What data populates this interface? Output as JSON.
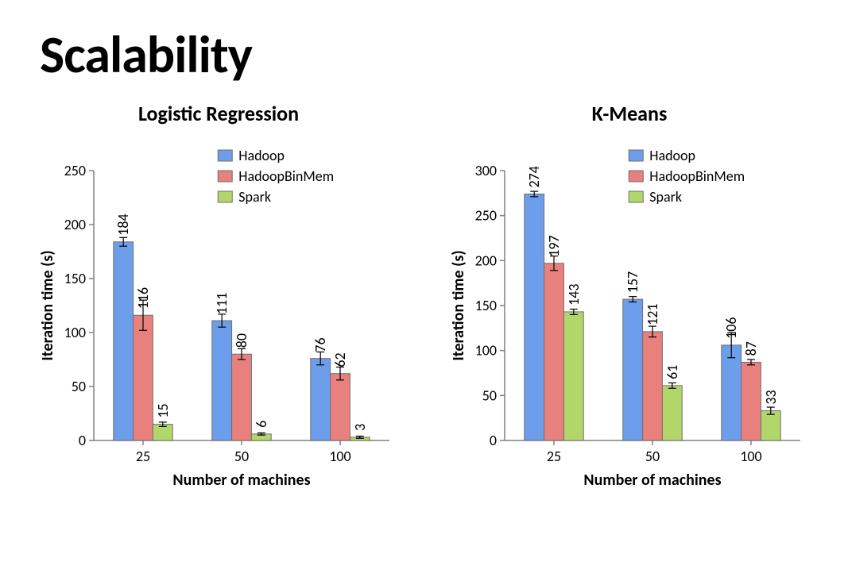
{
  "title": "Scalability",
  "series_colors": {
    "hadoop": "#6d9eeb",
    "hadoop_binmem": "#e8817e",
    "spark": "#b3d66b"
  },
  "bar_border_color": "#6f6f6f",
  "axis_color": "#808080",
  "bar_label_fontsize": 18,
  "axis_label_fontsize": 20,
  "tick_label_fontsize": 18,
  "chart_subtitle_fontsize": 26,
  "legend_fontsize": 18,
  "legend": {
    "items": [
      {
        "key": "hadoop",
        "label": "Hadoop"
      },
      {
        "key": "hadoop_binmem",
        "label": "HadoopBinMem"
      },
      {
        "key": "spark",
        "label": "Spark"
      }
    ]
  },
  "charts": [
    {
      "id": "logreg",
      "subtitle": "Logistic Regression",
      "ylabel": "Iteration time (s)",
      "xlabel": "Number of machines",
      "ymax": 250,
      "ytick_step": 50,
      "categories": [
        "25",
        "50",
        "100"
      ],
      "series": [
        {
          "key": "hadoop",
          "values": [
            184,
            111,
            76
          ],
          "err": [
            4,
            6,
            6
          ]
        },
        {
          "key": "hadoop_binmem",
          "values": [
            116,
            80,
            62
          ],
          "err": [
            14,
            5,
            6
          ]
        },
        {
          "key": "spark",
          "values": [
            15,
            6,
            3
          ],
          "err": [
            2,
            1,
            1
          ]
        }
      ]
    },
    {
      "id": "kmeans",
      "subtitle": "K-Means",
      "ylabel": "Iteration time (s)",
      "xlabel": "Number of machines",
      "ymax": 300,
      "ytick_step": 50,
      "categories": [
        "25",
        "50",
        "100"
      ],
      "series": [
        {
          "key": "hadoop",
          "values": [
            274,
            157,
            106
          ],
          "err": [
            3,
            3,
            14
          ]
        },
        {
          "key": "hadoop_binmem",
          "values": [
            197,
            121,
            87
          ],
          "err": [
            8,
            6,
            3
          ]
        },
        {
          "key": "spark",
          "values": [
            143,
            61,
            33
          ],
          "err": [
            3,
            3,
            4
          ]
        }
      ]
    }
  ]
}
